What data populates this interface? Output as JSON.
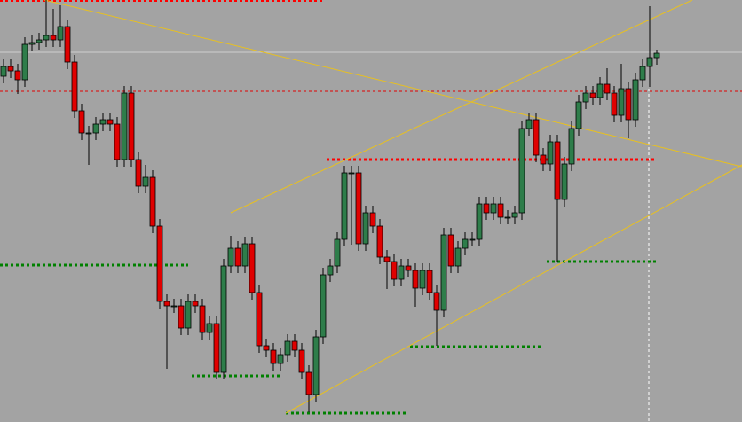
{
  "chart_data": {
    "type": "candlestick",
    "ylim": [
      0,
      476
    ],
    "up_color": "#2e7d4a",
    "down_color": "#e00000",
    "open": [
      390,
      401,
      396,
      386,
      426,
      428,
      431,
      436,
      431,
      446,
      406,
      351,
      326,
      326,
      336,
      341,
      336,
      296,
      371,
      296,
      266,
      276,
      221,
      136,
      131,
      131,
      106,
      136,
      131,
      101,
      111,
      56,
      176,
      196,
      176,
      201,
      146,
      86,
      81,
      66,
      76,
      91,
      81,
      56,
      31,
      96,
      166,
      176,
      206,
      281,
      281,
      201,
      236,
      221,
      186,
      181,
      161,
      176,
      171,
      151,
      171,
      146,
      126,
      211,
      176,
      196,
      206,
      206,
      246,
      236,
      246,
      231,
      231,
      236,
      331,
      341,
      301,
      291,
      316,
      251,
      291,
      331,
      361,
      371,
      366,
      381,
      371,
      346,
      376,
      341,
      386,
      401,
      411
    ],
    "high": [
      409,
      409,
      404,
      434,
      436,
      439,
      476,
      466,
      470,
      454,
      414,
      359,
      334,
      344,
      349,
      349,
      344,
      379,
      379,
      304,
      290,
      284,
      229,
      144,
      139,
      139,
      144,
      144,
      139,
      119,
      119,
      184,
      210,
      204,
      209,
      209,
      154,
      94,
      89,
      84,
      99,
      99,
      89,
      64,
      104,
      174,
      184,
      214,
      289,
      289,
      289,
      244,
      244,
      229,
      194,
      189,
      184,
      184,
      179,
      179,
      179,
      154,
      219,
      219,
      204,
      214,
      214,
      254,
      254,
      254,
      254,
      239,
      244,
      339,
      349,
      349,
      309,
      324,
      324,
      299,
      339,
      369,
      379,
      379,
      389,
      399,
      379,
      404,
      384,
      394,
      409,
      469,
      420
    ],
    "low": [
      382,
      388,
      370,
      378,
      418,
      420,
      423,
      423,
      423,
      398,
      343,
      318,
      290,
      318,
      328,
      328,
      288,
      288,
      288,
      258,
      258,
      213,
      128,
      60,
      123,
      98,
      98,
      123,
      93,
      93,
      48,
      48,
      168,
      168,
      168,
      138,
      78,
      73,
      58,
      58,
      68,
      73,
      48,
      11,
      23,
      88,
      158,
      168,
      198,
      200,
      193,
      193,
      213,
      178,
      150,
      153,
      153,
      163,
      130,
      143,
      138,
      86,
      118,
      168,
      168,
      188,
      198,
      198,
      228,
      228,
      223,
      223,
      223,
      228,
      323,
      293,
      283,
      283,
      181,
      243,
      283,
      323,
      353,
      358,
      358,
      363,
      338,
      338,
      320,
      333,
      378,
      378,
      403
    ],
    "close": [
      401,
      396,
      386,
      426,
      428,
      431,
      436,
      431,
      446,
      406,
      351,
      326,
      326,
      336,
      341,
      336,
      296,
      371,
      296,
      266,
      276,
      221,
      136,
      131,
      131,
      106,
      136,
      131,
      101,
      111,
      56,
      176,
      196,
      176,
      201,
      146,
      86,
      81,
      66,
      76,
      91,
      81,
      56,
      31,
      96,
      166,
      176,
      206,
      281,
      281,
      201,
      236,
      221,
      186,
      181,
      161,
      176,
      171,
      151,
      171,
      146,
      126,
      211,
      176,
      196,
      206,
      206,
      246,
      236,
      246,
      231,
      231,
      236,
      331,
      341,
      301,
      291,
      316,
      251,
      291,
      331,
      361,
      371,
      366,
      381,
      371,
      346,
      376,
      341,
      386,
      401,
      411,
      416
    ]
  }
}
